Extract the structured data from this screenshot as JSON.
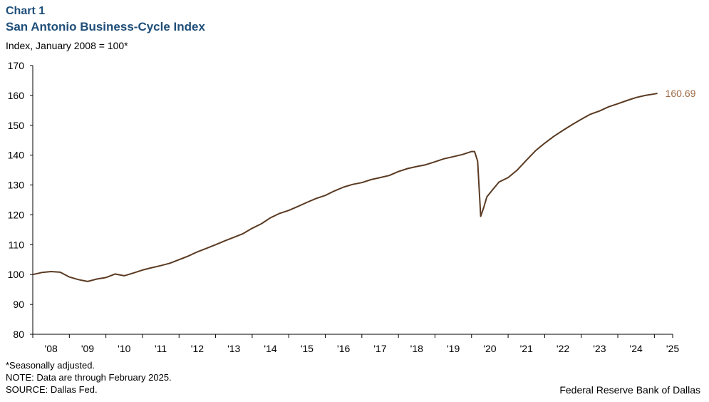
{
  "header": {
    "chart_number": "Chart 1",
    "title": "San Antonio Business-Cycle Index",
    "units": "Index, January 2008 = 100*"
  },
  "footer": {
    "note1": "*Seasonally adjusted.",
    "note2": "NOTE: Data are through February 2025.",
    "source": "SOURCE: Dallas Fed.",
    "credit": "Federal Reserve Bank of Dallas"
  },
  "colors": {
    "line": "#5a3a22",
    "end_label": "#9c6a45",
    "title": "#1f4e79",
    "axis": "#000000"
  },
  "chart_data": {
    "type": "line",
    "title": "San Antonio Business-Cycle Index",
    "ylabel": "Index, January 2008 = 100*",
    "xlabel": "",
    "ylim": [
      80,
      170
    ],
    "y_ticks": [
      80,
      90,
      100,
      110,
      120,
      130,
      140,
      150,
      160,
      170
    ],
    "x_range": [
      2008.0,
      2025.5
    ],
    "x_tick_labels": [
      "'08",
      "'09",
      "'10",
      "'11",
      "'12",
      "'13",
      "'14",
      "'15",
      "'16",
      "'17",
      "'18",
      "'19",
      "'20",
      "'21",
      "'22",
      "'23",
      "'24",
      "'25"
    ],
    "grid": false,
    "end_label": "160.69",
    "series": [
      {
        "points": [
          [
            "2008-01",
            100.0
          ],
          [
            "2008-04",
            100.7
          ],
          [
            "2008-07",
            101.0
          ],
          [
            "2008-10",
            100.8
          ],
          [
            "2009-01",
            99.2
          ],
          [
            "2009-04",
            98.3
          ],
          [
            "2009-07",
            97.7
          ],
          [
            "2009-10",
            98.5
          ],
          [
            "2010-01",
            99.0
          ],
          [
            "2010-04",
            100.2
          ],
          [
            "2010-07",
            99.6
          ],
          [
            "2010-10",
            100.5
          ],
          [
            "2011-01",
            101.5
          ],
          [
            "2011-04",
            102.3
          ],
          [
            "2011-07",
            103.0
          ],
          [
            "2011-10",
            103.8
          ],
          [
            "2012-01",
            105.0
          ],
          [
            "2012-04",
            106.2
          ],
          [
            "2012-07",
            107.6
          ],
          [
            "2012-10",
            108.8
          ],
          [
            "2013-01",
            110.0
          ],
          [
            "2013-04",
            111.3
          ],
          [
            "2013-07",
            112.5
          ],
          [
            "2013-10",
            113.7
          ],
          [
            "2014-01",
            115.5
          ],
          [
            "2014-04",
            117.0
          ],
          [
            "2014-07",
            119.0
          ],
          [
            "2014-10",
            120.5
          ],
          [
            "2015-01",
            121.5
          ],
          [
            "2015-04",
            122.8
          ],
          [
            "2015-07",
            124.2
          ],
          [
            "2015-10",
            125.5
          ],
          [
            "2016-01",
            126.5
          ],
          [
            "2016-04",
            128.0
          ],
          [
            "2016-07",
            129.3
          ],
          [
            "2016-10",
            130.2
          ],
          [
            "2017-01",
            130.8
          ],
          [
            "2017-04",
            131.8
          ],
          [
            "2017-07",
            132.5
          ],
          [
            "2017-10",
            133.2
          ],
          [
            "2018-01",
            134.5
          ],
          [
            "2018-04",
            135.5
          ],
          [
            "2018-07",
            136.2
          ],
          [
            "2018-10",
            136.8
          ],
          [
            "2019-01",
            137.8
          ],
          [
            "2019-04",
            138.8
          ],
          [
            "2019-07",
            139.5
          ],
          [
            "2019-10",
            140.2
          ],
          [
            "2020-01",
            141.2
          ],
          [
            "2020-02",
            141.2
          ],
          [
            "2020-03",
            138.0
          ],
          [
            "2020-04",
            119.5
          ],
          [
            "2020-05",
            122.5
          ],
          [
            "2020-06",
            126.0
          ],
          [
            "2020-08",
            128.5
          ],
          [
            "2020-10",
            131.0
          ],
          [
            "2021-01",
            132.5
          ],
          [
            "2021-04",
            135.0
          ],
          [
            "2021-07",
            138.3
          ],
          [
            "2021-10",
            141.5
          ],
          [
            "2022-01",
            144.0
          ],
          [
            "2022-04",
            146.3
          ],
          [
            "2022-07",
            148.3
          ],
          [
            "2022-10",
            150.2
          ],
          [
            "2023-01",
            152.0
          ],
          [
            "2023-04",
            153.7
          ],
          [
            "2023-07",
            154.8
          ],
          [
            "2023-10",
            156.2
          ],
          [
            "2024-01",
            157.2
          ],
          [
            "2024-04",
            158.3
          ],
          [
            "2024-07",
            159.3
          ],
          [
            "2024-10",
            160.0
          ],
          [
            "2025-01",
            160.5
          ],
          [
            "2025-02",
            160.69
          ]
        ]
      }
    ]
  }
}
